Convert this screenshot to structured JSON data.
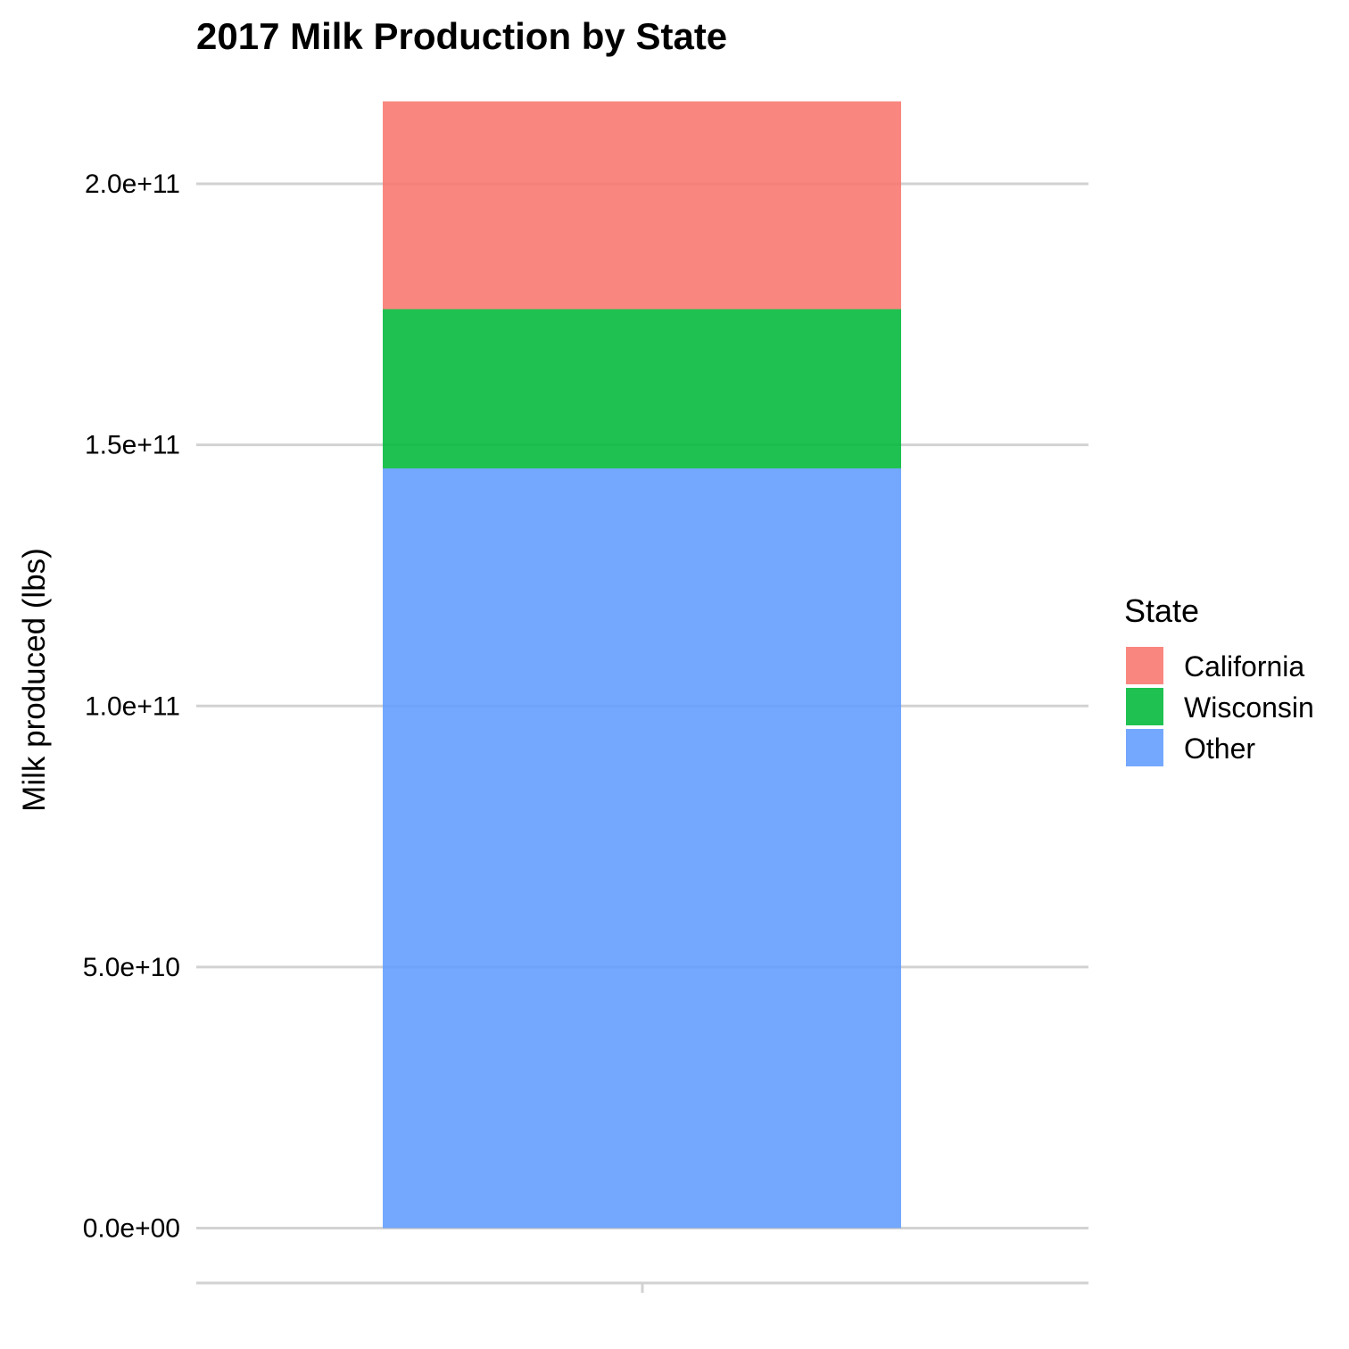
{
  "chart_data": {
    "type": "bar",
    "stacked": true,
    "title": "2017 Milk Production by State",
    "xlabel": "",
    "ylabel": "Milk produced (lbs)",
    "categories": [
      ""
    ],
    "ylim": [
      -10000000000.0,
      220000000000.0
    ],
    "yticks": [
      0,
      50000000000.0,
      100000000000.0,
      150000000000.0,
      200000000000.0
    ],
    "ytick_labels": [
      "0.0e+00",
      "5.0e+10",
      "1.0e+11",
      "1.5e+11",
      "2.0e+11"
    ],
    "grid": true,
    "legend": {
      "title": "State",
      "position": "right"
    },
    "series": [
      {
        "name": "California",
        "values": [
          39800000000.0
        ],
        "color": "#F8766D"
      },
      {
        "name": "Wisconsin",
        "values": [
          30500000000.0
        ],
        "color": "#00BA38"
      },
      {
        "name": "Other",
        "values": [
          145500000000.0
        ],
        "color": "#619CFF"
      }
    ]
  }
}
